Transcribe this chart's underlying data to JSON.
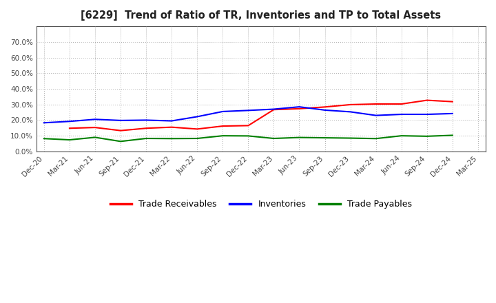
{
  "title": "[6229]  Trend of Ratio of TR, Inventories and TP to Total Assets",
  "x_labels": [
    "Dec-20",
    "Mar-21",
    "Jun-21",
    "Sep-21",
    "Dec-21",
    "Mar-22",
    "Jun-22",
    "Sep-22",
    "Dec-22",
    "Mar-23",
    "Jun-23",
    "Sep-23",
    "Dec-23",
    "Mar-24",
    "Jun-24",
    "Sep-24",
    "Dec-24",
    "Mar-25"
  ],
  "trade_receivables": [
    null,
    0.148,
    0.153,
    0.133,
    0.148,
    0.155,
    0.143,
    0.162,
    0.165,
    0.267,
    0.273,
    0.284,
    0.299,
    0.303,
    0.303,
    0.327,
    0.318,
    null
  ],
  "inventories": [
    0.183,
    0.192,
    0.205,
    0.198,
    0.2,
    0.195,
    0.222,
    0.255,
    0.262,
    0.27,
    0.285,
    0.264,
    0.253,
    0.23,
    0.237,
    0.237,
    0.242,
    null
  ],
  "trade_payables": [
    0.082,
    0.074,
    0.09,
    0.064,
    0.083,
    0.082,
    0.083,
    0.1,
    0.099,
    0.083,
    0.089,
    0.087,
    0.085,
    0.082,
    0.1,
    0.097,
    0.103,
    null
  ],
  "tr_color": "#FF0000",
  "inv_color": "#0000FF",
  "tp_color": "#008000",
  "ylim": [
    0.0,
    0.8
  ],
  "yticks": [
    0.0,
    0.1,
    0.2,
    0.3,
    0.4,
    0.5,
    0.6,
    0.7
  ],
  "background_color": "#FFFFFF",
  "plot_bg_color": "#FFFFFF",
  "grid_color": "#AAAAAA",
  "legend_labels": [
    "Trade Receivables",
    "Inventories",
    "Trade Payables"
  ]
}
